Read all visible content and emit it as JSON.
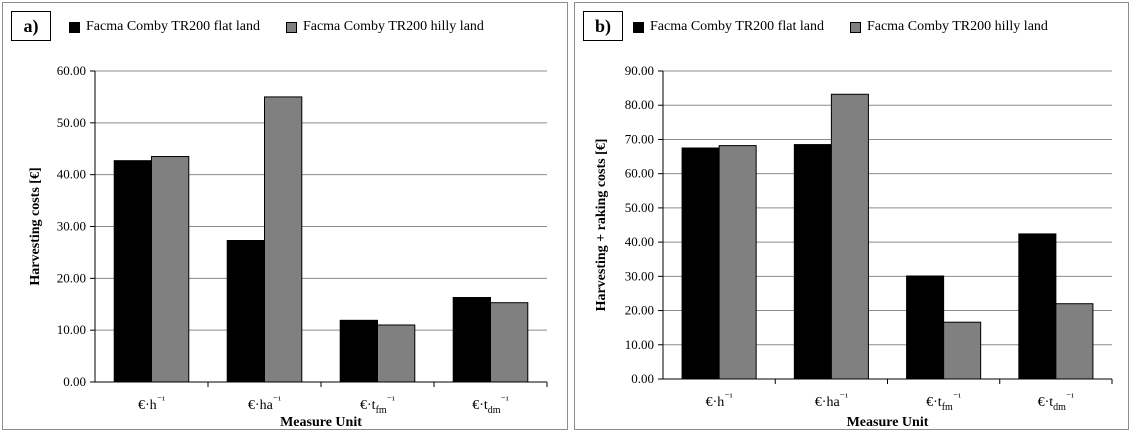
{
  "chart_data": [
    {
      "type": "bar",
      "panel_label": "a)",
      "categories": [
        "€·h⁻¹",
        "€·ha⁻¹",
        "€·t_fm⁻¹",
        "€·t_dm⁻¹"
      ],
      "series": [
        {
          "name": "Facma Comby TR200 flat land",
          "values": [
            42.7,
            27.3,
            11.9,
            16.3
          ]
        },
        {
          "name": "Facma Comby TR200 hilly land",
          "values": [
            43.5,
            55.0,
            11.0,
            15.3
          ]
        }
      ],
      "ylabel": "Harvesting costs [€]",
      "xlabel": "Measure Unit",
      "ylim": [
        0,
        60
      ],
      "ytick_labels": [
        "0.00",
        "10.00",
        "20.00",
        "30.00",
        "40.00",
        "50.00",
        "60.00"
      ],
      "grid": true,
      "legend": "top"
    },
    {
      "type": "bar",
      "panel_label": "b)",
      "categories": [
        "€·h⁻¹",
        "€·ha⁻¹",
        "€·t_fm⁻¹",
        "€·t_dm⁻¹"
      ],
      "series": [
        {
          "name": "Facma Comby TR200 flat land",
          "values": [
            67.5,
            68.5,
            30.1,
            42.4
          ]
        },
        {
          "name": "Facma Comby TR200 hilly land",
          "values": [
            68.2,
            83.2,
            16.6,
            22.0
          ]
        }
      ],
      "ylabel": "Harvesting + raking costs [€]",
      "xlabel": "Measure Unit",
      "ylim": [
        0,
        90
      ],
      "ytick_labels": [
        "0.00",
        "10.00",
        "20.00",
        "30.00",
        "40.00",
        "50.00",
        "60.00",
        "70.00",
        "80.00",
        "90.00"
      ],
      "grid": true,
      "legend": "top"
    }
  ],
  "colors": {
    "flat": "#000000",
    "hilly": "#808080",
    "grid": "#8c8c8c"
  }
}
